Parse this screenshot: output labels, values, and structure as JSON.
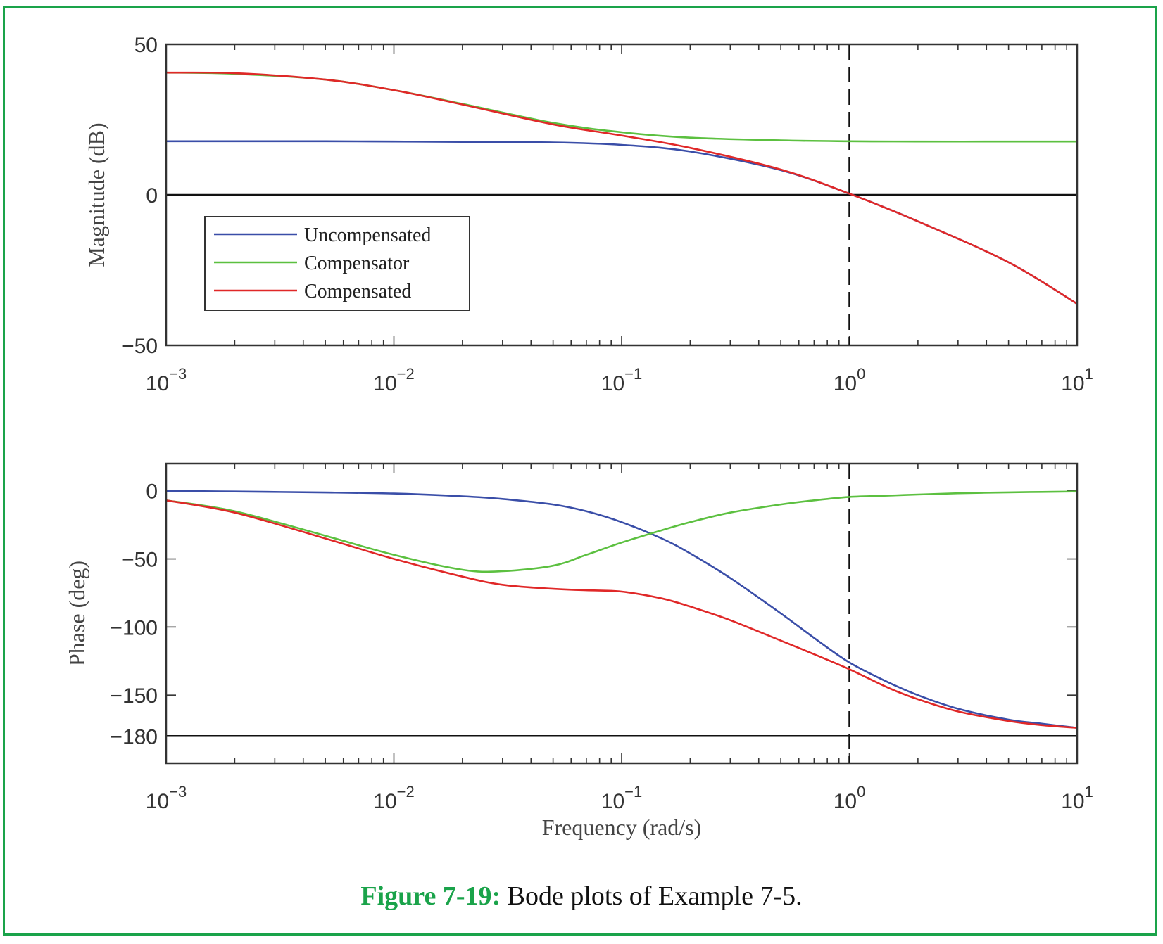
{
  "caption": {
    "label": "Figure 7-19:",
    "text": " Bode plots of Example 7-5."
  },
  "colors": {
    "uncompensated": "#3a4ea8",
    "compensator": "#5cc040",
    "compensated": "#e02828",
    "frame": "#1aa34a"
  },
  "chart_data": [
    {
      "type": "line",
      "title": "",
      "xlabel": "",
      "ylabel": "Magnitude (dB)",
      "xscale": "log",
      "xlim": [
        0.001,
        10
      ],
      "ylim": [
        -50,
        50
      ],
      "yticks": [
        -50,
        0,
        50
      ],
      "ytick_labels": [
        "−50",
        "0",
        "50"
      ],
      "xtick_labels": [
        {
          "base": "10",
          "exp": "−3"
        },
        {
          "base": "10",
          "exp": "−2"
        },
        {
          "base": "10",
          "exp": "−1"
        },
        {
          "base": "10",
          "exp": "0"
        },
        {
          "base": "10",
          "exp": "1"
        }
      ],
      "reference_lines": {
        "horizontal": [
          0
        ],
        "vertical_dashed": [
          1
        ]
      },
      "legend": {
        "position": "middle-left",
        "entries": [
          "Uncompensated",
          "Compensator",
          "Compensated"
        ]
      },
      "x": [
        0.001,
        0.002,
        0.005,
        0.01,
        0.02,
        0.05,
        0.1,
        0.2,
        0.5,
        1,
        2,
        5,
        10
      ],
      "series": [
        {
          "name": "Uncompensated",
          "values": [
            17.8,
            17.8,
            17.8,
            17.7,
            17.6,
            17.4,
            16.6,
            14.4,
            8.2,
            0.4,
            -8.8,
            -22.4,
            -36.2
          ]
        },
        {
          "name": "Compensator",
          "values": [
            40.6,
            40.2,
            38.3,
            34.8,
            30.2,
            23.9,
            20.8,
            19.0,
            18.1,
            17.8,
            17.7,
            17.7,
            17.7
          ]
        },
        {
          "name": "Compensated",
          "values": [
            40.6,
            40.4,
            38.3,
            34.8,
            30.0,
            23.4,
            19.7,
            15.6,
            8.4,
            0.4,
            -8.8,
            -22.4,
            -36.2
          ]
        }
      ]
    },
    {
      "type": "line",
      "title": "",
      "xlabel": "Frequency (rad/s)",
      "ylabel": "Phase (deg)",
      "xscale": "log",
      "xlim": [
        0.001,
        10
      ],
      "ylim": [
        -200,
        20
      ],
      "yticks": [
        -180,
        -150,
        -100,
        -50,
        0
      ],
      "ytick_labels": [
        "−180",
        "−150",
        "−100",
        "−50",
        "0"
      ],
      "xtick_labels": [
        {
          "base": "10",
          "exp": "−3"
        },
        {
          "base": "10",
          "exp": "−2"
        },
        {
          "base": "10",
          "exp": "−1"
        },
        {
          "base": "10",
          "exp": "0"
        },
        {
          "base": "10",
          "exp": "1"
        }
      ],
      "reference_lines": {
        "horizontal": [
          -180
        ],
        "vertical_dashed": [
          1
        ]
      },
      "x": [
        0.001,
        0.002,
        0.005,
        0.01,
        0.02,
        0.03,
        0.05,
        0.07,
        0.1,
        0.15,
        0.2,
        0.3,
        0.5,
        0.7,
        1,
        1.5,
        2,
        3,
        5,
        7,
        10
      ],
      "series": [
        {
          "name": "Uncompensated",
          "values": [
            0,
            -0.5,
            -1.2,
            -2,
            -4,
            -6,
            -10,
            -15,
            -23,
            -35,
            -46,
            -64,
            -90,
            -108,
            -126,
            -141,
            -150,
            -160,
            -168,
            -171,
            -174
          ]
        },
        {
          "name": "Compensator",
          "values": [
            -7,
            -15,
            -33,
            -47,
            -58,
            -59,
            -55,
            -47,
            -38,
            -29,
            -23,
            -16,
            -10,
            -7,
            -4.5,
            -3.5,
            -2.7,
            -1.8,
            -1.1,
            -0.8,
            -0.5
          ]
        },
        {
          "name": "Compensated",
          "values": [
            -7,
            -16,
            -35,
            -50,
            -63,
            -69,
            -72,
            -73,
            -74,
            -79,
            -85,
            -95,
            -110,
            -120,
            -131,
            -145,
            -153,
            -162,
            -169,
            -172,
            -174
          ]
        }
      ]
    }
  ]
}
